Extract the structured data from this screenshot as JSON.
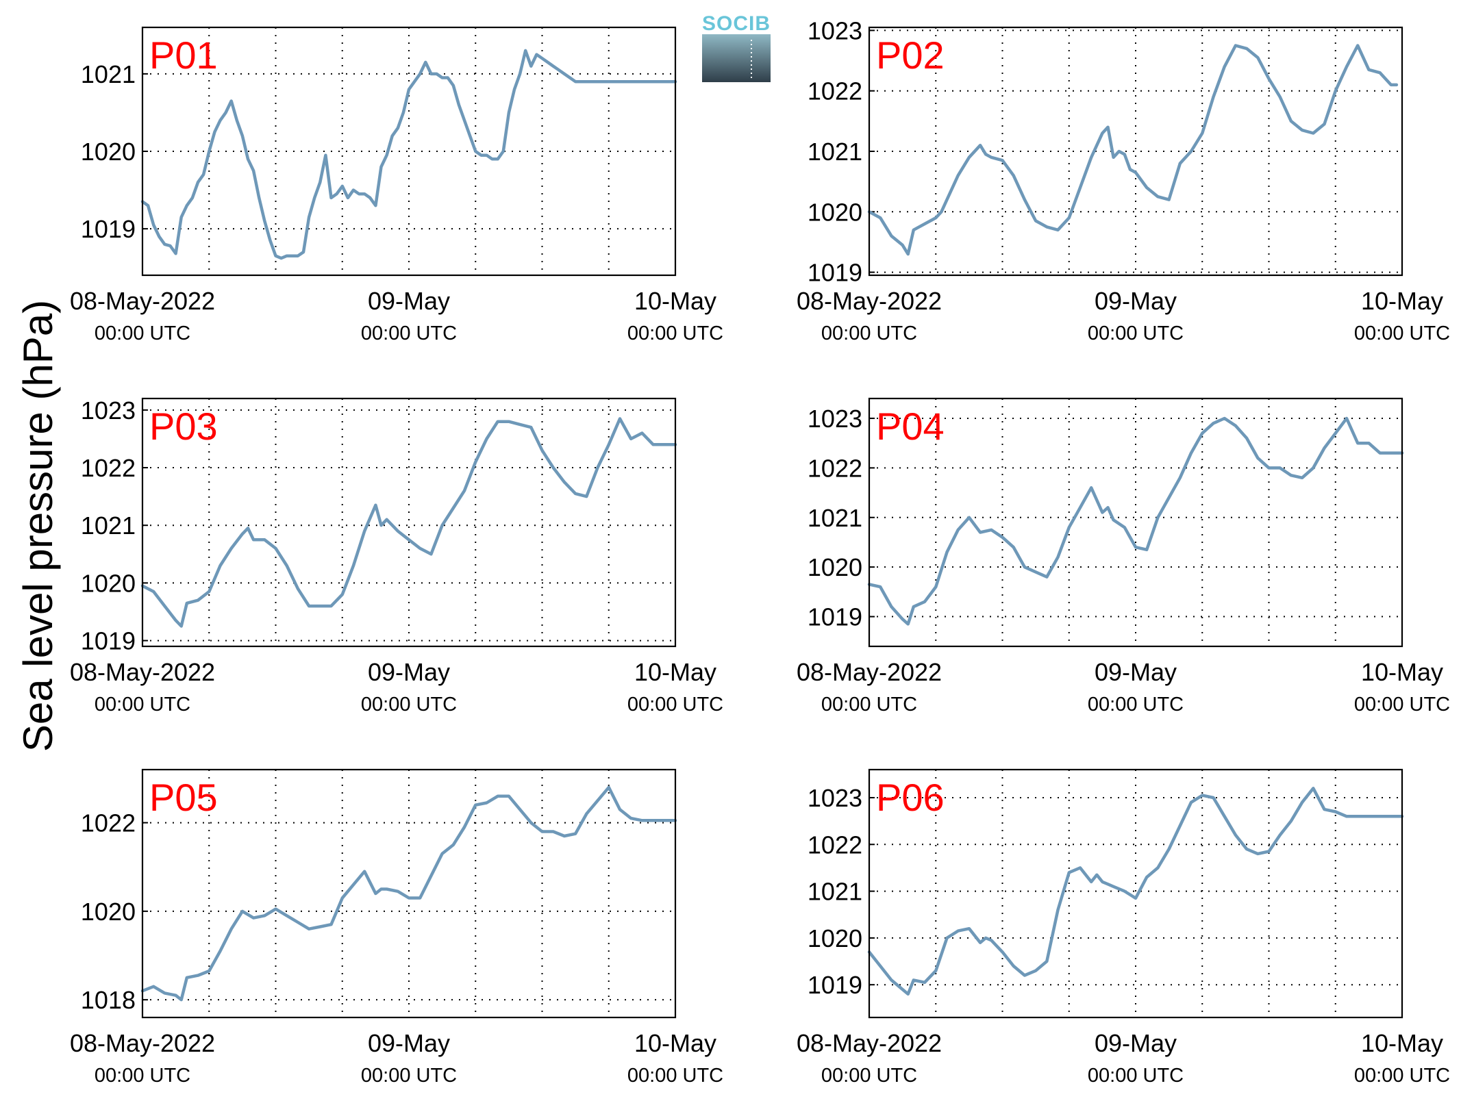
{
  "figure": {
    "ylabel": "Sea level pressure (hPa)",
    "logo_text": "SOCIB"
  },
  "colors": {
    "series": "#6e98b8",
    "panel_label": "#ff0000"
  },
  "chart_data": [
    {
      "type": "line",
      "name": "P01",
      "x_ticks": [
        {
          "top": "08-May-2022",
          "bottom": "00:00 UTC"
        },
        {
          "top": "09-May",
          "bottom": "00:00 UTC"
        },
        {
          "top": "10-May",
          "bottom": "00:00 UTC"
        }
      ],
      "xlim_hours": [
        0,
        48
      ],
      "ylim": [
        1018.4,
        1021.6
      ],
      "yticks": [
        1019,
        1020,
        1021
      ],
      "x_hours": [
        0,
        0.5,
        1,
        1.5,
        2,
        2.5,
        3,
        3.5,
        4,
        4.5,
        5,
        5.5,
        6,
        6.5,
        7,
        7.5,
        8,
        8.5,
        9,
        9.5,
        10,
        10.5,
        11,
        11.5,
        12,
        12.5,
        13,
        13.5,
        14,
        14.5,
        15,
        15.5,
        16,
        16.5,
        17,
        17.5,
        18,
        18.5,
        19,
        19.5,
        20,
        20.5,
        21,
        21.5,
        22,
        22.5,
        23,
        23.5,
        24,
        24.5,
        25,
        25.5,
        26,
        26.5,
        27,
        27.5,
        28,
        28.5,
        29,
        29.5,
        30,
        30.5,
        31,
        31.5,
        32,
        32.5,
        33,
        33.5,
        34,
        34.5,
        35,
        35.5,
        36,
        36.5,
        37,
        37.5,
        38,
        38.5,
        39,
        39.5,
        40,
        40.5,
        41,
        41.5,
        42,
        42.5,
        43,
        43.5,
        44,
        44.5,
        45,
        45.5,
        46,
        46.5,
        47,
        47.5,
        48
      ],
      "y": [
        1019.35,
        1019.3,
        1019.05,
        1018.9,
        1018.8,
        1018.78,
        1018.68,
        1019.15,
        1019.3,
        1019.4,
        1019.6,
        1019.7,
        1020.0,
        1020.25,
        1020.4,
        1020.5,
        1020.65,
        1020.4,
        1020.2,
        1019.9,
        1019.75,
        1019.4,
        1019.1,
        1018.85,
        1018.65,
        1018.62,
        1018.65,
        1018.65,
        1018.65,
        1018.7,
        1019.15,
        1019.4,
        1019.6,
        1019.95,
        1019.4,
        1019.45,
        1019.55,
        1019.4,
        1019.5,
        1019.45,
        1019.45,
        1019.4,
        1019.3,
        1019.8,
        1019.95,
        1020.2,
        1020.3,
        1020.5,
        1020.8,
        1020.9,
        1021.0,
        1021.15,
        1021.0,
        1021.0,
        1020.95,
        1020.95,
        1020.85,
        1020.6,
        1020.4,
        1020.2,
        1020.0,
        1019.95,
        1019.95,
        1019.9,
        1019.9,
        1020.0,
        1020.5,
        1020.8,
        1021.0,
        1021.3,
        1021.1,
        1021.25,
        1021.2,
        1021.15,
        1021.1,
        1021.05,
        1021.0,
        1020.95,
        1020.9,
        1020.9,
        1020.9,
        1020.9,
        1020.9,
        1020.9,
        1020.9,
        1020.9,
        1020.9,
        1020.9,
        1020.9,
        1020.9,
        1020.9,
        1020.9,
        1020.9,
        1020.9,
        1020.9,
        1020.9,
        1020.9
      ]
    },
    {
      "type": "line",
      "name": "P02",
      "x_ticks": [
        {
          "top": "08-May-2022",
          "bottom": "00:00 UTC"
        },
        {
          "top": "09-May",
          "bottom": "00:00 UTC"
        },
        {
          "top": "10-May",
          "bottom": "00:00 UTC"
        }
      ],
      "xlim_hours": [
        0,
        48
      ],
      "ylim": [
        1018.95,
        1023.05
      ],
      "yticks": [
        1019,
        1020,
        1021,
        1022,
        1023
      ],
      "x_hours": [
        0,
        1,
        2,
        3,
        3.5,
        4,
        5,
        6,
        6.5,
        7,
        8,
        9,
        10,
        10.5,
        11,
        12,
        13,
        14,
        15,
        16,
        17,
        18,
        19,
        20,
        21,
        21.5,
        22,
        22.5,
        23,
        23.5,
        24,
        25,
        26,
        27,
        28,
        29,
        30,
        31,
        32,
        33,
        34,
        35,
        36,
        37,
        38,
        39,
        40,
        41,
        42,
        43,
        44,
        45,
        46,
        47,
        47.5
      ],
      "y": [
        1020.0,
        1019.9,
        1019.6,
        1019.45,
        1019.3,
        1019.7,
        1019.8,
        1019.9,
        1020.0,
        1020.2,
        1020.6,
        1020.9,
        1021.1,
        1020.95,
        1020.9,
        1020.85,
        1020.6,
        1020.2,
        1019.85,
        1019.75,
        1019.7,
        1019.9,
        1020.4,
        1020.9,
        1021.3,
        1021.4,
        1020.9,
        1021.0,
        1020.95,
        1020.7,
        1020.65,
        1020.4,
        1020.25,
        1020.2,
        1020.8,
        1021.0,
        1021.3,
        1021.9,
        1022.4,
        1022.75,
        1022.7,
        1022.55,
        1022.2,
        1021.9,
        1021.5,
        1021.35,
        1021.3,
        1021.45,
        1022.0,
        1022.4,
        1022.75,
        1022.35,
        1022.3,
        1022.1,
        1022.1
      ]
    },
    {
      "type": "line",
      "name": "P03",
      "x_ticks": [
        {
          "top": "08-May-2022",
          "bottom": "00:00 UTC"
        },
        {
          "top": "09-May",
          "bottom": "00:00 UTC"
        },
        {
          "top": "10-May",
          "bottom": "00:00 UTC"
        }
      ],
      "xlim_hours": [
        0,
        48
      ],
      "ylim": [
        1018.9,
        1023.2
      ],
      "yticks": [
        1019,
        1020,
        1021,
        1022,
        1023
      ],
      "x_hours": [
        0,
        1,
        2,
        3,
        3.5,
        4,
        5,
        6,
        7,
        8,
        9,
        9.5,
        10,
        11,
        12,
        13,
        14,
        15,
        16,
        17,
        18,
        19,
        20,
        21,
        21.5,
        22,
        22.5,
        23,
        24,
        25,
        26,
        27,
        28,
        29,
        30,
        31,
        32,
        33,
        34,
        35,
        36,
        37,
        38,
        39,
        40,
        41,
        42,
        43,
        44,
        45,
        46,
        47,
        48
      ],
      "y": [
        1019.95,
        1019.85,
        1019.6,
        1019.35,
        1019.25,
        1019.65,
        1019.7,
        1019.85,
        1020.3,
        1020.6,
        1020.85,
        1020.95,
        1020.75,
        1020.75,
        1020.6,
        1020.3,
        1019.9,
        1019.6,
        1019.6,
        1019.6,
        1019.8,
        1020.3,
        1020.9,
        1021.35,
        1021.0,
        1021.1,
        1021.0,
        1020.9,
        1020.75,
        1020.6,
        1020.5,
        1021.0,
        1021.3,
        1021.6,
        1022.1,
        1022.5,
        1022.8,
        1022.8,
        1022.75,
        1022.7,
        1022.3,
        1022.0,
        1021.75,
        1021.55,
        1021.5,
        1022.0,
        1022.4,
        1022.85,
        1022.5,
        1022.6,
        1022.4,
        1022.4,
        1022.4
      ]
    },
    {
      "type": "line",
      "name": "P04",
      "x_ticks": [
        {
          "top": "08-May-2022",
          "bottom": "00:00 UTC"
        },
        {
          "top": "09-May",
          "bottom": "00:00 UTC"
        },
        {
          "top": "10-May",
          "bottom": "00:00 UTC"
        }
      ],
      "xlim_hours": [
        0,
        48
      ],
      "ylim": [
        1018.4,
        1023.4
      ],
      "yticks": [
        1019,
        1020,
        1021,
        1022,
        1023
      ],
      "x_hours": [
        0,
        1,
        2,
        3,
        3.5,
        4,
        5,
        6,
        7,
        8,
        9,
        10,
        11,
        12,
        13,
        14,
        15,
        16,
        17,
        18,
        19,
        20,
        21,
        21.5,
        22,
        23,
        24,
        25,
        26,
        27,
        28,
        29,
        30,
        31,
        32,
        33,
        34,
        35,
        36,
        37,
        38,
        39,
        40,
        41,
        42,
        43,
        44,
        45,
        46,
        47,
        48
      ],
      "y": [
        1019.65,
        1019.6,
        1019.2,
        1018.95,
        1018.85,
        1019.2,
        1019.3,
        1019.6,
        1020.3,
        1020.75,
        1021.0,
        1020.7,
        1020.75,
        1020.6,
        1020.4,
        1020.0,
        1019.9,
        1019.8,
        1020.2,
        1020.8,
        1021.2,
        1021.6,
        1021.1,
        1021.2,
        1020.95,
        1020.8,
        1020.4,
        1020.35,
        1021.0,
        1021.4,
        1021.8,
        1022.3,
        1022.7,
        1022.9,
        1023.0,
        1022.85,
        1022.6,
        1022.2,
        1022.0,
        1022.0,
        1021.85,
        1021.8,
        1022.0,
        1022.4,
        1022.7,
        1023.0,
        1022.5,
        1022.5,
        1022.3,
        1022.3,
        1022.3
      ]
    },
    {
      "type": "line",
      "name": "P05",
      "x_ticks": [
        {
          "top": "08-May-2022",
          "bottom": "00:00 UTC"
        },
        {
          "top": "09-May",
          "bottom": "00:00 UTC"
        },
        {
          "top": "10-May",
          "bottom": "00:00 UTC"
        }
      ],
      "xlim_hours": [
        0,
        48
      ],
      "ylim": [
        1017.6,
        1023.2
      ],
      "yticks": [
        1018,
        1020,
        1022
      ],
      "x_hours": [
        0,
        1,
        2,
        3,
        3.5,
        4,
        5,
        6,
        7,
        8,
        9,
        10,
        11,
        12,
        13,
        14,
        15,
        16,
        17,
        18,
        19,
        20,
        21,
        21.5,
        22,
        23,
        24,
        25,
        26,
        27,
        28,
        29,
        30,
        31,
        32,
        33,
        34,
        35,
        36,
        37,
        38,
        39,
        40,
        41,
        42,
        43,
        44,
        45,
        46,
        47,
        48
      ],
      "y": [
        1018.2,
        1018.3,
        1018.15,
        1018.1,
        1018.0,
        1018.5,
        1018.55,
        1018.65,
        1019.1,
        1019.6,
        1020.0,
        1019.85,
        1019.9,
        1020.05,
        1019.9,
        1019.75,
        1019.6,
        1019.65,
        1019.7,
        1020.3,
        1020.6,
        1020.9,
        1020.4,
        1020.5,
        1020.5,
        1020.45,
        1020.3,
        1020.3,
        1020.8,
        1021.3,
        1021.5,
        1021.9,
        1022.4,
        1022.45,
        1022.6,
        1022.6,
        1022.3,
        1022.0,
        1021.8,
        1021.8,
        1021.7,
        1021.75,
        1022.2,
        1022.5,
        1022.8,
        1022.3,
        1022.1,
        1022.05,
        1022.05,
        1022.05,
        1022.05
      ]
    },
    {
      "type": "line",
      "name": "P06",
      "x_ticks": [
        {
          "top": "08-May-2022",
          "bottom": "00:00 UTC"
        },
        {
          "top": "09-May",
          "bottom": "00:00 UTC"
        },
        {
          "top": "10-May",
          "bottom": "00:00 UTC"
        }
      ],
      "xlim_hours": [
        0,
        48
      ],
      "ylim": [
        1018.3,
        1023.6
      ],
      "yticks": [
        1019,
        1020,
        1021,
        1022,
        1023
      ],
      "x_hours": [
        0,
        1,
        2,
        3,
        3.5,
        4,
        5,
        6,
        7,
        8,
        9,
        10,
        10.5,
        11,
        12,
        13,
        14,
        15,
        16,
        17,
        18,
        19,
        20,
        20.5,
        21,
        21.5,
        22,
        23,
        24,
        25,
        26,
        27,
        28,
        29,
        30,
        31,
        32,
        33,
        34,
        35,
        36,
        37,
        38,
        39,
        40,
        41,
        42,
        43,
        44,
        45,
        46,
        47,
        48
      ],
      "y": [
        1019.7,
        1019.4,
        1019.1,
        1018.9,
        1018.8,
        1019.1,
        1019.05,
        1019.3,
        1020.0,
        1020.15,
        1020.2,
        1019.9,
        1020.0,
        1019.95,
        1019.7,
        1019.4,
        1019.2,
        1019.3,
        1019.5,
        1020.6,
        1021.4,
        1021.5,
        1021.2,
        1021.35,
        1021.2,
        1021.15,
        1021.1,
        1021.0,
        1020.85,
        1021.3,
        1021.5,
        1021.9,
        1022.4,
        1022.9,
        1023.05,
        1023.0,
        1022.6,
        1022.2,
        1021.9,
        1021.8,
        1021.85,
        1022.2,
        1022.5,
        1022.9,
        1023.2,
        1022.75,
        1022.7,
        1022.6,
        1022.6,
        1022.6,
        1022.6,
        1022.6,
        1022.6
      ]
    }
  ]
}
